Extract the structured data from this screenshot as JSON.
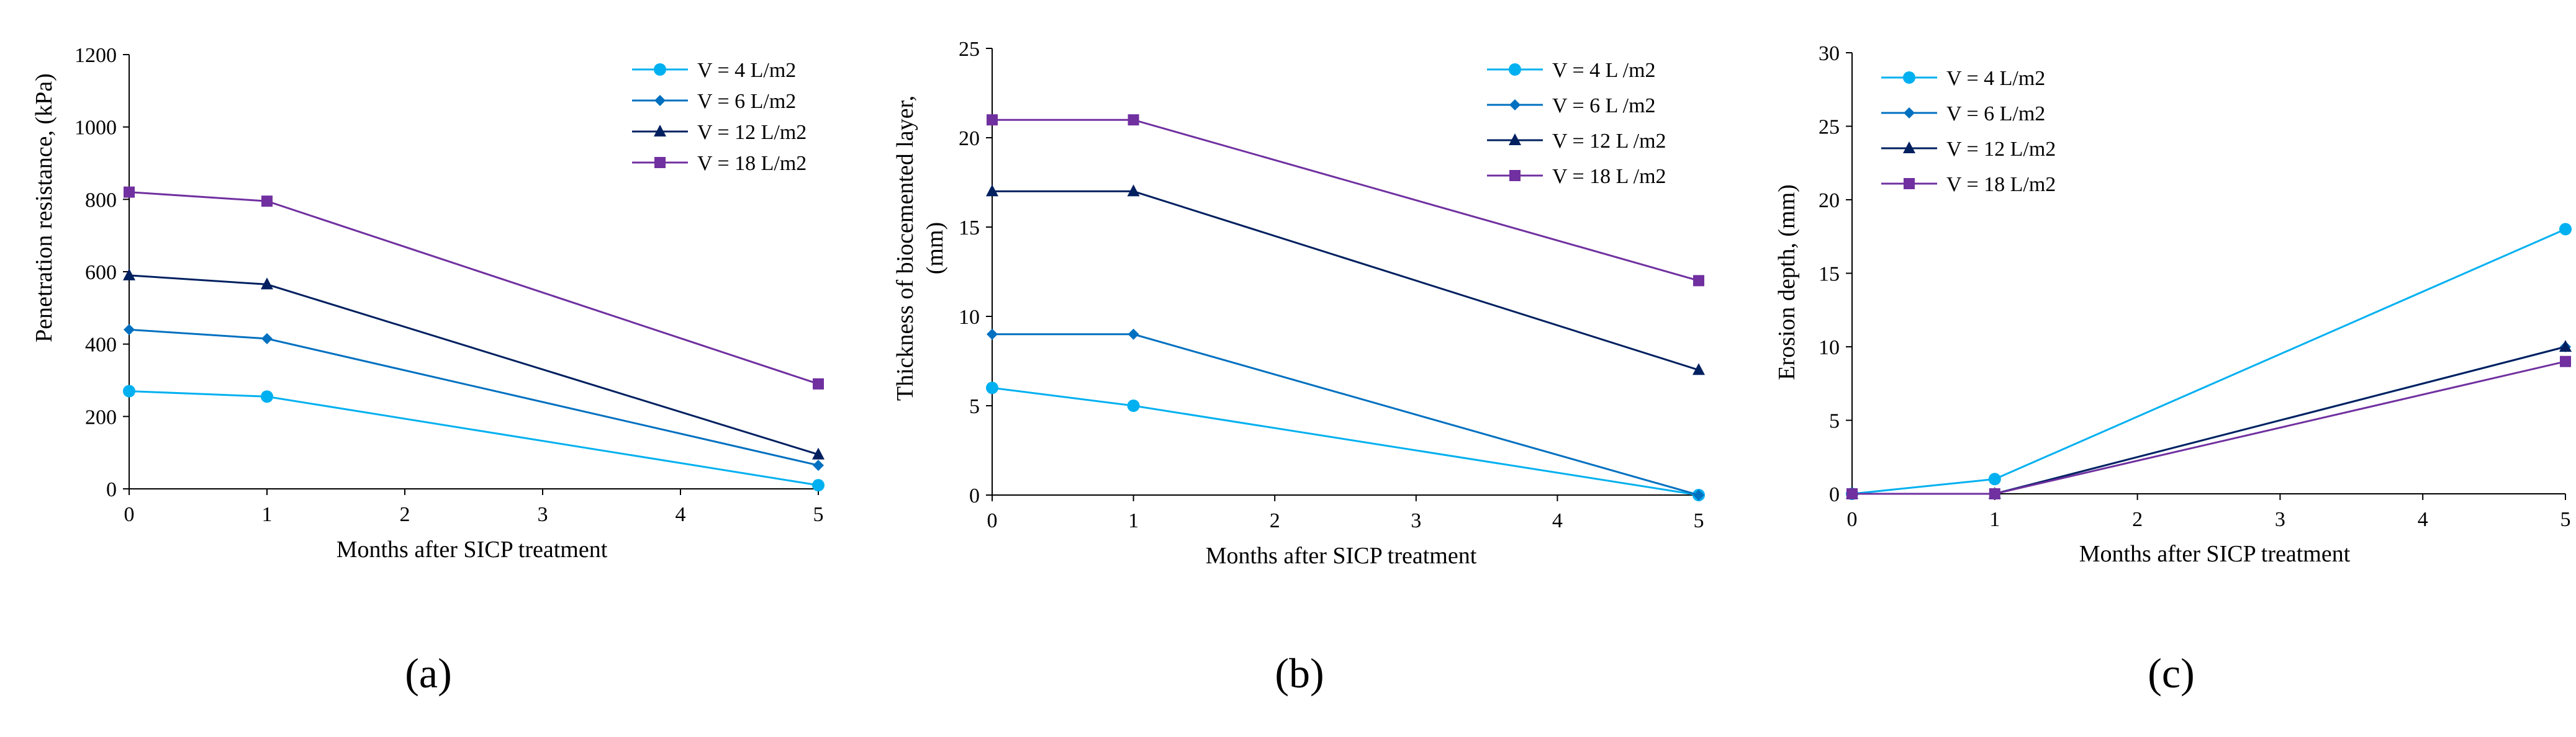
{
  "figure": {
    "panel_labels": [
      "(a)",
      "(b)",
      "(c)"
    ]
  },
  "colors": {
    "v4": "#00B0F0",
    "v6": "#0070C0",
    "v12": "#002060",
    "v18": "#7030A0",
    "axis": "#000000"
  },
  "chart_data": [
    {
      "type": "line",
      "panel": "(a)",
      "title": "",
      "xlabel": "Months after SICP treatment",
      "ylabel": "Penetration resistance, (kPa)",
      "xlim": [
        0,
        5
      ],
      "ylim": [
        0,
        1200
      ],
      "xticks": [
        0,
        1,
        2,
        3,
        4,
        5
      ],
      "yticks": [
        0,
        200,
        400,
        600,
        800,
        1000,
        1200
      ],
      "legend_position": "top-right",
      "x": [
        0,
        1,
        5
      ],
      "series": [
        {
          "name": "V = 4 L/m2",
          "marker": "circle",
          "color_key": "v4",
          "values": [
            270,
            255,
            10
          ]
        },
        {
          "name": "V = 6 L/m2",
          "marker": "diamond",
          "color_key": "v6",
          "values": [
            440,
            415,
            65
          ]
        },
        {
          "name": "V = 12 L/m2",
          "marker": "triangle",
          "color_key": "v12",
          "values": [
            590,
            565,
            95
          ]
        },
        {
          "name": "V = 18 L/m2",
          "marker": "square",
          "color_key": "v18",
          "values": [
            820,
            795,
            290
          ]
        }
      ]
    },
    {
      "type": "line",
      "panel": "(b)",
      "title": "",
      "xlabel": "Months after SICP treatment",
      "ylabel_lines": [
        "Thickness of biocemented layer,",
        "(mm)"
      ],
      "xlim": [
        0,
        5
      ],
      "ylim": [
        0,
        25
      ],
      "xticks": [
        0,
        1,
        2,
        3,
        4,
        5
      ],
      "yticks": [
        0,
        5,
        10,
        15,
        20,
        25
      ],
      "legend_position": "top-right",
      "x": [
        0,
        1,
        5
      ],
      "series": [
        {
          "name": "V = 4 L /m2",
          "marker": "circle",
          "color_key": "v4",
          "values": [
            6,
            5,
            0
          ]
        },
        {
          "name": "V = 6 L /m2",
          "marker": "diamond",
          "color_key": "v6",
          "values": [
            9,
            9,
            0
          ]
        },
        {
          "name": "V = 12 L /m2",
          "marker": "triangle",
          "color_key": "v12",
          "values": [
            17,
            17,
            7
          ]
        },
        {
          "name": "V = 18 L /m2",
          "marker": "square",
          "color_key": "v18",
          "values": [
            21,
            21,
            12
          ]
        }
      ]
    },
    {
      "type": "line",
      "panel": "(c)",
      "title": "",
      "xlabel": "Months after SICP treatment",
      "ylabel": "Erosion depth, (mm)",
      "xlim": [
        0,
        5
      ],
      "ylim": [
        0,
        30
      ],
      "xticks": [
        0,
        1,
        2,
        3,
        4,
        5
      ],
      "yticks": [
        0,
        5,
        10,
        15,
        20,
        25,
        30
      ],
      "legend_position": "top-left",
      "x": [
        0,
        1,
        5
      ],
      "series": [
        {
          "name": "V = 4 L/m2",
          "marker": "circle",
          "color_key": "v4",
          "values": [
            0,
            1,
            18
          ]
        },
        {
          "name": "V = 6 L/m2",
          "marker": "diamond",
          "color_key": "v6",
          "values": [
            0,
            0,
            10
          ]
        },
        {
          "name": "V = 12 L/m2",
          "marker": "triangle",
          "color_key": "v12",
          "values": [
            0,
            0,
            10
          ]
        },
        {
          "name": "V = 18 L/m2",
          "marker": "square",
          "color_key": "v18",
          "values": [
            0,
            0,
            9
          ]
        }
      ]
    }
  ]
}
